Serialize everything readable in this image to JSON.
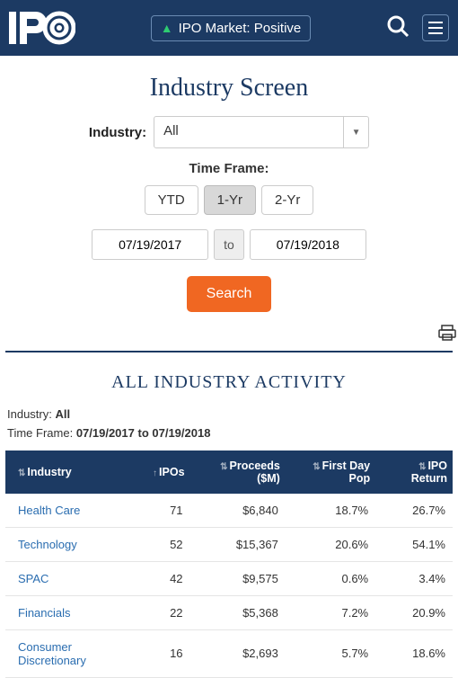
{
  "header": {
    "market_status_label": "IPO Market: Positive",
    "accent_color": "#1c3a63",
    "positive_color": "#2ecc71"
  },
  "page": {
    "title": "Industry Screen"
  },
  "filters": {
    "industry_label": "Industry:",
    "industry_selected": "All",
    "time_frame_label": "Time Frame:",
    "segments": {
      "ytd": "YTD",
      "one_yr": "1-Yr",
      "two_yr": "2-Yr"
    },
    "active_segment": "one_yr",
    "date_from": "07/19/2017",
    "date_sep": "to",
    "date_to": "07/19/2018",
    "search_label": "Search",
    "search_color": "#f06722"
  },
  "section": {
    "title": "ALL INDUSTRY ACTIVITY",
    "meta_industry_label": "Industry: ",
    "meta_industry_value": "All",
    "meta_tf_label": "Time Frame: ",
    "meta_tf_value": "07/19/2017 to 07/19/2018"
  },
  "table": {
    "columns": {
      "industry": "Industry",
      "ipos": "IPOs",
      "proceeds": "Proceeds ($M)",
      "pop": "First Day Pop",
      "return": "IPO Return"
    },
    "rows": [
      {
        "industry": "Health Care",
        "ipos": "71",
        "proceeds": "$6,840",
        "pop": "18.7%",
        "return": "26.7%"
      },
      {
        "industry": "Technology",
        "ipos": "52",
        "proceeds": "$15,367",
        "pop": "20.6%",
        "return": "54.1%"
      },
      {
        "industry": "SPAC",
        "ipos": "42",
        "proceeds": "$9,575",
        "pop": "0.6%",
        "return": "3.4%"
      },
      {
        "industry": "Financials",
        "ipos": "22",
        "proceeds": "$5,368",
        "pop": "7.2%",
        "return": "20.9%"
      },
      {
        "industry": "Consumer Discretionary",
        "ipos": "16",
        "proceeds": "$2,693",
        "pop": "5.7%",
        "return": "18.6%"
      }
    ],
    "link_color": "#2a6db0"
  }
}
